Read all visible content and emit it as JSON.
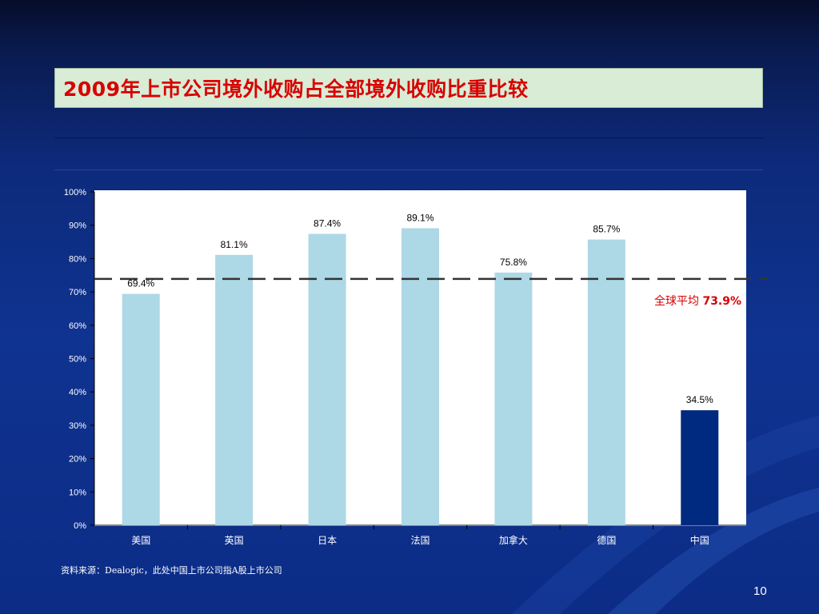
{
  "slide": {
    "title": "2009年上市公司境外收购占全部境外收购比重比较",
    "source_note": "资料来源：Dealogic，此处中国上市公司指A股上市公司",
    "page_number": "10"
  },
  "chart_data": {
    "type": "bar",
    "categories": [
      "美国",
      "英国",
      "日本",
      "法国",
      "加拿大",
      "德国",
      "中国"
    ],
    "values": [
      69.4,
      81.1,
      87.4,
      89.1,
      75.8,
      85.7,
      34.5
    ],
    "data_labels": [
      "69.4%",
      "81.1%",
      "87.4%",
      "89.1%",
      "75.8%",
      "85.7%",
      "34.5%"
    ],
    "ylim": [
      0,
      100
    ],
    "y_ticks": [
      0,
      10,
      20,
      30,
      40,
      50,
      60,
      70,
      80,
      90,
      100
    ],
    "y_tick_labels": [
      "0%",
      "10%",
      "20%",
      "30%",
      "40%",
      "50%",
      "60%",
      "70%",
      "80%",
      "90%",
      "100%"
    ],
    "grid": false,
    "colors": {
      "bar_default": "#add8e6",
      "bar_highlight": "#002a80",
      "reference_line": "#333333",
      "annotation": "#d90000"
    },
    "highlight_category": "中国",
    "reference_line": {
      "value": 73.9,
      "label_prefix": "全球平均 ",
      "label_value": "73.9%"
    }
  }
}
